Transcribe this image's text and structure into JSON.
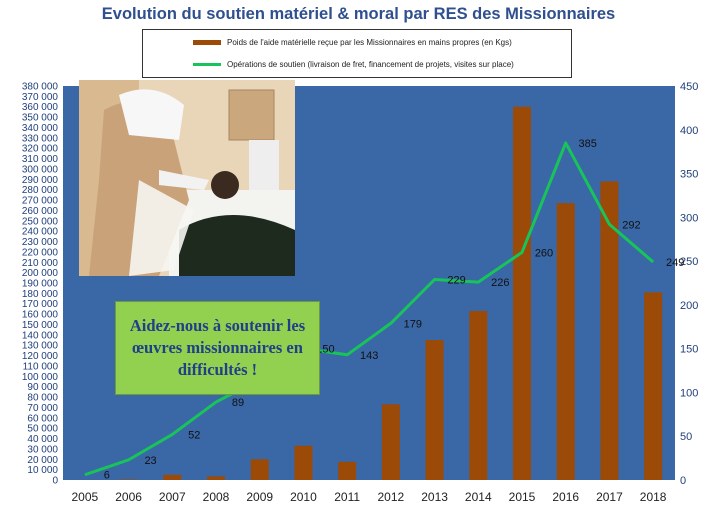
{
  "chart_data": {
    "type": "bar",
    "title": "Evolution du soutien matériel  & moral par RES des Missionnaires",
    "categories": [
      "2005",
      "2006",
      "2007",
      "2008",
      "2009",
      "2010",
      "2011",
      "2012",
      "2013",
      "2014",
      "2015",
      "2016",
      "2017",
      "2018"
    ],
    "series": [
      {
        "name": "Poids de l'aide matérielle reçue par les Missionnaires en mains propres (en Kgs)",
        "type": "bar",
        "axis": "left",
        "color": "#9b4a07",
        "values": [
          0,
          500,
          5000,
          3500,
          20000,
          33000,
          17500,
          73000,
          135000,
          163000,
          360000,
          267000,
          288000,
          181000
        ]
      },
      {
        "name": "Opérations de soutien (livraison de fret, financement de projets, visites sur place)",
        "type": "line",
        "axis": "right",
        "color": "#18c45a",
        "values": [
          6,
          23,
          52,
          89,
          115,
          150,
          143,
          179,
          229,
          226,
          260,
          385,
          292,
          249
        ],
        "labels": [
          "6",
          "23",
          "52",
          "89",
          "",
          "150",
          "143",
          "179",
          "229",
          "226",
          "260",
          "385",
          "292",
          "249"
        ]
      }
    ],
    "y_left": {
      "min": 0,
      "max": 380000,
      "step": 10000,
      "ticks": [
        "0",
        "10 000",
        "20 000",
        "30 000",
        "40 000",
        "50 000",
        "60 000",
        "70 000",
        "80 000",
        "90 000",
        "100 000",
        "110 000",
        "120 000",
        "130 000",
        "140 000",
        "150 000",
        "160 000",
        "170 000",
        "180 000",
        "190 000",
        "200 000",
        "210 000",
        "220 000",
        "230 000",
        "240 000",
        "250 000",
        "260 000",
        "270 000",
        "280 000",
        "290 000",
        "300 000",
        "310 000",
        "320 000",
        "330 000",
        "340 000",
        "350 000",
        "360 000",
        "370 000",
        "380 000"
      ]
    },
    "y_right": {
      "min": 0,
      "max": 450,
      "step": 50,
      "ticks": [
        "0",
        "50",
        "100",
        "150",
        "200",
        "250",
        "300",
        "350",
        "400",
        "450"
      ]
    },
    "legend_position": "top",
    "grid": false
  },
  "callout": {
    "text": "Aidez-nous à soutenir les œuvres missionnaires en difficultés !"
  },
  "photo": {
    "description_icon": "photo-nun-visiting-patient"
  },
  "colors": {
    "plot_bg": "#3a67a6",
    "bar": "#9b4a07",
    "line": "#18c45a",
    "title": "#2f4f8f",
    "axis_text": "#1f3f7a",
    "callout_bg": "#92d050"
  }
}
